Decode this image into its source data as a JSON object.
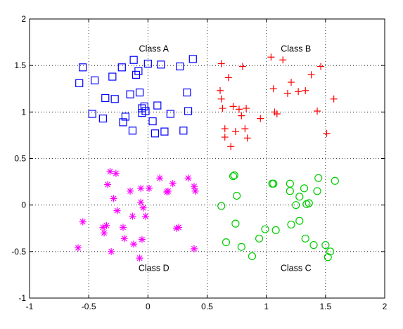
{
  "chart_data": {
    "type": "scatter",
    "xlim": [
      -1,
      2
    ],
    "ylim": [
      -1,
      2
    ],
    "xticks": [
      -1,
      -0.5,
      0,
      0.5,
      1,
      1.5,
      2
    ],
    "yticks": [
      -1,
      -0.5,
      0,
      0.5,
      1,
      1.5,
      2
    ],
    "xtick_labels": [
      "-1",
      "-0.5",
      "0",
      "0.5",
      "1",
      "1.5",
      "2"
    ],
    "ytick_labels": [
      "-1",
      "-0.5",
      "0",
      "0.5",
      "1",
      "1.5",
      "2"
    ],
    "grid": true,
    "grid_style": "dotted",
    "annotations": [
      {
        "text": "Class A",
        "x": 0.05,
        "y": 1.68
      },
      {
        "text": "Class B",
        "x": 1.25,
        "y": 1.68
      },
      {
        "text": "Class D",
        "x": 0.05,
        "y": -0.68
      },
      {
        "text": "Class C",
        "x": 1.25,
        "y": -0.68
      }
    ],
    "series": [
      {
        "marker": "square",
        "color": "#0000ff",
        "points": [
          [
            -0.58,
            1.31
          ],
          [
            -0.55,
            1.48
          ],
          [
            -0.47,
            0.98
          ],
          [
            -0.45,
            1.34
          ],
          [
            -0.38,
            0.93
          ],
          [
            -0.36,
            1.15
          ],
          [
            -0.3,
            1.38
          ],
          [
            -0.28,
            1.14
          ],
          [
            -0.22,
            1.48
          ],
          [
            -0.21,
            0.89
          ],
          [
            -0.19,
            0.95
          ],
          [
            -0.15,
            1.19
          ],
          [
            -0.13,
            0.8
          ],
          [
            -0.12,
            1.56
          ],
          [
            -0.1,
            1.4
          ],
          [
            -0.08,
            1.44
          ],
          [
            -0.07,
            1.21
          ],
          [
            -0.05,
            0.99
          ],
          [
            -0.05,
            1.04
          ],
          [
            -0.03,
            1.06
          ],
          [
            -0.02,
            1.01
          ],
          [
            0.0,
            1.52
          ],
          [
            0.04,
            0.9
          ],
          [
            0.06,
            0.77
          ],
          [
            0.08,
            1.07
          ],
          [
            0.11,
            1.51
          ],
          [
            0.14,
            0.79
          ],
          [
            0.19,
            0.98
          ],
          [
            0.27,
            1.49
          ],
          [
            0.3,
            0.8
          ],
          [
            0.33,
            1.21
          ],
          [
            0.34,
            1.01
          ],
          [
            0.38,
            1.57
          ]
        ]
      },
      {
        "marker": "plus",
        "color": "#ff0000",
        "points": [
          [
            0.61,
            1.23
          ],
          [
            0.62,
            1.14
          ],
          [
            0.62,
            1.52
          ],
          [
            0.63,
            1.04
          ],
          [
            0.65,
            0.82
          ],
          [
            0.65,
            0.73
          ],
          [
            0.68,
            1.37
          ],
          [
            0.7,
            0.63
          ],
          [
            0.72,
            1.06
          ],
          [
            0.74,
            0.79
          ],
          [
            0.77,
            1.03
          ],
          [
            0.79,
            0.96
          ],
          [
            0.8,
            1.49
          ],
          [
            0.82,
            0.82
          ],
          [
            0.83,
            1.04
          ],
          [
            0.84,
            0.72
          ],
          [
            0.95,
            0.93
          ],
          [
            1.04,
            1.59
          ],
          [
            1.06,
            1.25
          ],
          [
            1.07,
            1.0
          ],
          [
            1.09,
            0.98
          ],
          [
            1.14,
            1.56
          ],
          [
            1.18,
            1.2
          ],
          [
            1.21,
            1.32
          ],
          [
            1.27,
            1.22
          ],
          [
            1.33,
            1.23
          ],
          [
            1.38,
            1.4
          ],
          [
            1.43,
            1.01
          ],
          [
            1.46,
            1.49
          ],
          [
            1.51,
            0.77
          ],
          [
            1.57,
            1.14
          ]
        ]
      },
      {
        "marker": "circle",
        "color": "#00cc00",
        "points": [
          [
            0.62,
            -0.01
          ],
          [
            0.66,
            -0.4
          ],
          [
            0.72,
            0.31
          ],
          [
            0.73,
            0.32
          ],
          [
            0.75,
            0.1
          ],
          [
            0.74,
            -0.2
          ],
          [
            0.79,
            -0.45
          ],
          [
            0.88,
            -0.55
          ],
          [
            0.94,
            -0.36
          ],
          [
            0.99,
            -0.26
          ],
          [
            1.05,
            0.23
          ],
          [
            1.06,
            0.23
          ],
          [
            1.08,
            -0.27
          ],
          [
            1.2,
            0.23
          ],
          [
            1.2,
            0.15
          ],
          [
            1.21,
            -0.21
          ],
          [
            1.25,
            0.0
          ],
          [
            1.28,
            0.09
          ],
          [
            1.28,
            -0.17
          ],
          [
            1.32,
            0.18
          ],
          [
            1.33,
            -0.36
          ],
          [
            1.34,
            0.01
          ],
          [
            1.36,
            0.02
          ],
          [
            1.4,
            -0.43
          ],
          [
            1.43,
            0.15
          ],
          [
            1.44,
            0.29
          ],
          [
            1.5,
            -0.43
          ],
          [
            1.52,
            -0.56
          ],
          [
            1.54,
            -0.5
          ],
          [
            1.58,
            0.26
          ]
        ]
      },
      {
        "marker": "asterisk",
        "color": "#ff00ff",
        "points": [
          [
            -0.59,
            -0.46
          ],
          [
            -0.55,
            -0.18
          ],
          [
            -0.38,
            -0.24
          ],
          [
            -0.37,
            -0.3
          ],
          [
            -0.35,
            -0.22
          ],
          [
            -0.34,
            0.22
          ],
          [
            -0.32,
            0.36
          ],
          [
            -0.31,
            -0.5
          ],
          [
            -0.29,
            0.07
          ],
          [
            -0.27,
            0.34
          ],
          [
            -0.26,
            -0.06
          ],
          [
            -0.21,
            -0.24
          ],
          [
            -0.2,
            -0.36
          ],
          [
            -0.15,
            0.15
          ],
          [
            -0.13,
            -0.12
          ],
          [
            -0.12,
            -0.42
          ],
          [
            -0.07,
            -0.57
          ],
          [
            -0.06,
            0.03
          ],
          [
            -0.05,
            -0.37
          ],
          [
            -0.06,
            0.18
          ],
          [
            -0.04,
            -0.03
          ],
          [
            -0.02,
            -0.12
          ],
          [
            0.01,
            0.18
          ],
          [
            0.1,
            0.29
          ],
          [
            0.16,
            0.14
          ],
          [
            0.17,
            0.15
          ],
          [
            0.21,
            0.23
          ],
          [
            0.24,
            -0.25
          ],
          [
            0.26,
            -0.24
          ],
          [
            0.34,
            0.29
          ],
          [
            0.39,
            0.2
          ],
          [
            0.39,
            -0.47
          ],
          [
            0.4,
            0.15
          ]
        ]
      }
    ]
  }
}
